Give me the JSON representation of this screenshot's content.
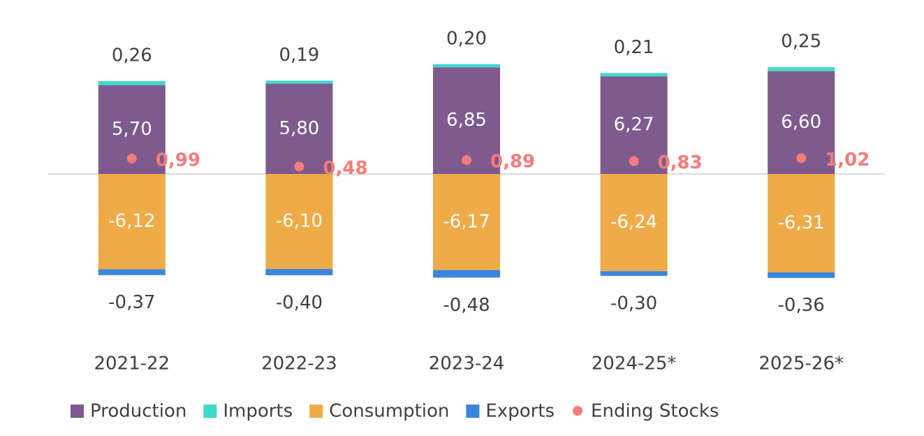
{
  "chart_data": {
    "type": "bar",
    "stacked": true,
    "categories": [
      "2021-22",
      "2022-23",
      "2023-24",
      "2024-25*",
      "2025-26*"
    ],
    "series": [
      {
        "name": "Production",
        "color": "#7e5a8e",
        "values": [
          5.7,
          5.8,
          6.85,
          6.27,
          6.6
        ],
        "value_labels": [
          "5,70",
          "5,80",
          "6,85",
          "6,27",
          "6,60"
        ]
      },
      {
        "name": "Imports",
        "color": "#40d9c8",
        "values": [
          0.26,
          0.19,
          0.2,
          0.21,
          0.25
        ],
        "value_labels": [
          "0,26",
          "0,19",
          "0,20",
          "0,21",
          "0,25"
        ]
      },
      {
        "name": "Consumption",
        "color": "#eeab48",
        "values": [
          -6.12,
          -6.1,
          -6.17,
          -6.24,
          -6.31
        ],
        "value_labels": [
          "-6,12",
          "-6,10",
          "-6,17",
          "-6,24",
          "-6,31"
        ]
      },
      {
        "name": "Exports",
        "color": "#3a85e0",
        "values": [
          -0.37,
          -0.4,
          -0.48,
          -0.3,
          -0.36
        ],
        "value_labels": [
          "-0,37",
          "-0,40",
          "-0,48",
          "-0,30",
          "-0,36"
        ]
      },
      {
        "name": "Ending Stocks",
        "type": "scatter",
        "color": "#f47c7c",
        "values": [
          0.99,
          0.48,
          0.89,
          0.83,
          1.02
        ],
        "value_labels": [
          "0,99",
          "0,48",
          "0,89",
          "0,83",
          "1,02"
        ]
      }
    ],
    "ylim": [
      -10,
      10
    ],
    "legend": "bottom"
  }
}
